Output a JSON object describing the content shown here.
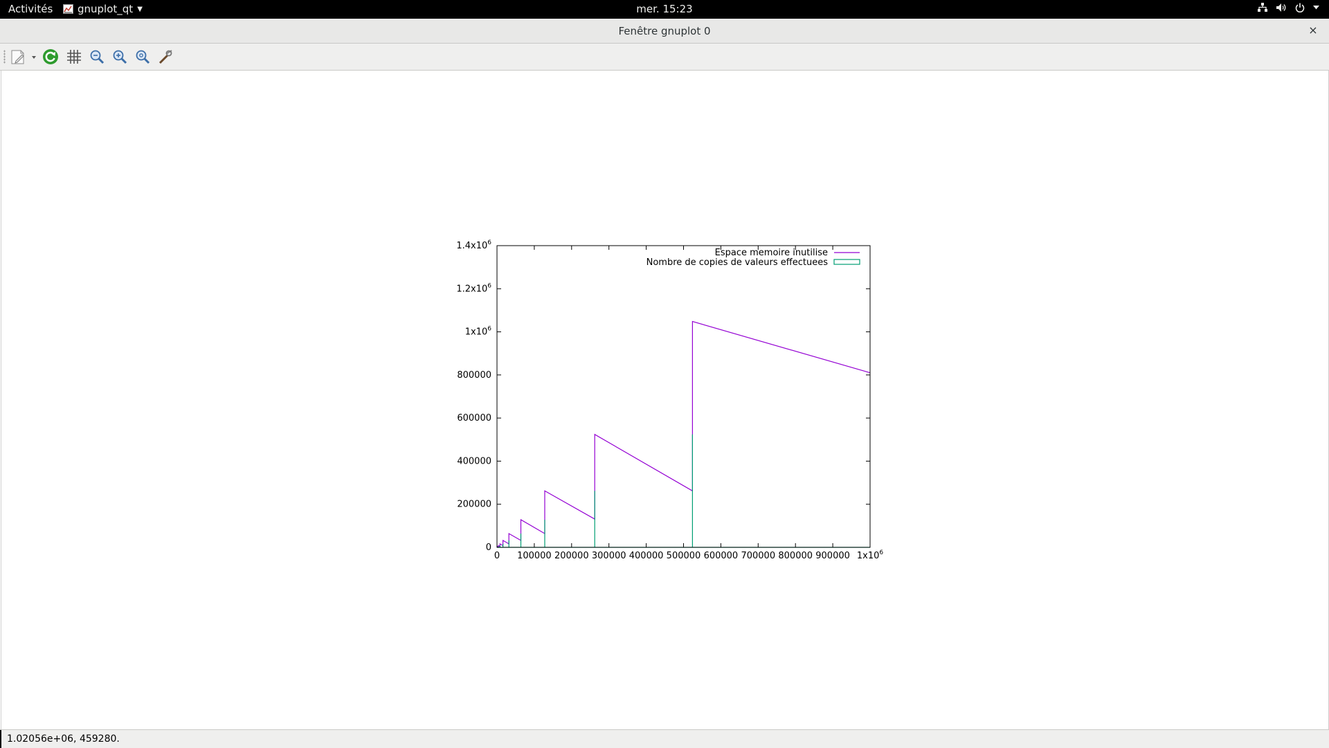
{
  "topbar": {
    "activities": "Activités",
    "app_name": "gnuplot_qt",
    "clock": "mer. 15:23",
    "icons": [
      "network-icon",
      "volume-icon",
      "power-icon",
      "chevron-down-icon"
    ]
  },
  "window": {
    "title": "Fenêtre gnuplot 0",
    "close": "×"
  },
  "toolbar": {
    "buttons": [
      "export-icon",
      "replot-icon",
      "grid-icon",
      "zoom-previous-icon",
      "zoom-next-icon",
      "autoscale-icon",
      "settings-icon"
    ]
  },
  "status": {
    "coords": "1.02056e+06,  459280."
  },
  "colors": {
    "series1": "#9400d3",
    "series2": "#009e73"
  },
  "chart_data": {
    "type": "line",
    "title": "",
    "xlabel": "",
    "ylabel": "",
    "xlim": [
      0,
      1000000
    ],
    "ylim": [
      0,
      1400000
    ],
    "grid": false,
    "legend_position": "top-right",
    "x_ticks": [
      {
        "v": 0,
        "label": "0"
      },
      {
        "v": 100000,
        "label": "100000"
      },
      {
        "v": 200000,
        "label": "200000"
      },
      {
        "v": 300000,
        "label": "300000"
      },
      {
        "v": 400000,
        "label": "400000"
      },
      {
        "v": 500000,
        "label": "500000"
      },
      {
        "v": 600000,
        "label": "600000"
      },
      {
        "v": 700000,
        "label": "700000"
      },
      {
        "v": 800000,
        "label": "800000"
      },
      {
        "v": 900000,
        "label": "900000"
      },
      {
        "v": 1000000,
        "label": "1x10",
        "exp": "6"
      }
    ],
    "y_ticks": [
      {
        "v": 0,
        "label": "0"
      },
      {
        "v": 200000,
        "label": "200000"
      },
      {
        "v": 400000,
        "label": "400000"
      },
      {
        "v": 600000,
        "label": "600000"
      },
      {
        "v": 800000,
        "label": "800000"
      },
      {
        "v": 1000000,
        "label": "1x10",
        "exp": "6"
      },
      {
        "v": 1200000,
        "label": "1.2x10",
        "exp": "6"
      },
      {
        "v": 1400000,
        "label": "1.4x10",
        "exp": "6"
      }
    ],
    "series": [
      {
        "name": "Espace memoire inutilise",
        "color": "#9400d3",
        "points": [
          [
            0,
            0
          ],
          [
            2000,
            0
          ],
          [
            2000,
            4000
          ],
          [
            4000,
            2000
          ],
          [
            4000,
            8000
          ],
          [
            8000,
            4000
          ],
          [
            8000,
            16000
          ],
          [
            16000,
            8000
          ],
          [
            16000,
            32000
          ],
          [
            32000,
            16000
          ],
          [
            32000,
            64000
          ],
          [
            64000,
            32000
          ],
          [
            64000,
            128000
          ],
          [
            128000,
            64000
          ],
          [
            128000,
            262000
          ],
          [
            262000,
            131000
          ],
          [
            262000,
            524000
          ],
          [
            524000,
            262000
          ],
          [
            524000,
            1048000
          ],
          [
            1000000,
            810000
          ]
        ]
      },
      {
        "name": "Nombre de copies de valeurs effectuees",
        "color": "#009e73",
        "points": [
          [
            0,
            0
          ],
          [
            2000,
            0
          ],
          [
            2000,
            2000
          ],
          [
            2000,
            0
          ],
          [
            4000,
            0
          ],
          [
            4000,
            4000
          ],
          [
            4000,
            0
          ],
          [
            8000,
            0
          ],
          [
            8000,
            8000
          ],
          [
            8000,
            0
          ],
          [
            16000,
            0
          ],
          [
            16000,
            16000
          ],
          [
            16000,
            0
          ],
          [
            32000,
            0
          ],
          [
            32000,
            32000
          ],
          [
            32000,
            0
          ],
          [
            64000,
            0
          ],
          [
            64000,
            64000
          ],
          [
            64000,
            0
          ],
          [
            128000,
            0
          ],
          [
            128000,
            128000
          ],
          [
            128000,
            0
          ],
          [
            262000,
            0
          ],
          [
            262000,
            262000
          ],
          [
            262000,
            0
          ],
          [
            524000,
            0
          ],
          [
            524000,
            524000
          ],
          [
            524000,
            0
          ],
          [
            1000000,
            0
          ]
        ]
      }
    ]
  }
}
